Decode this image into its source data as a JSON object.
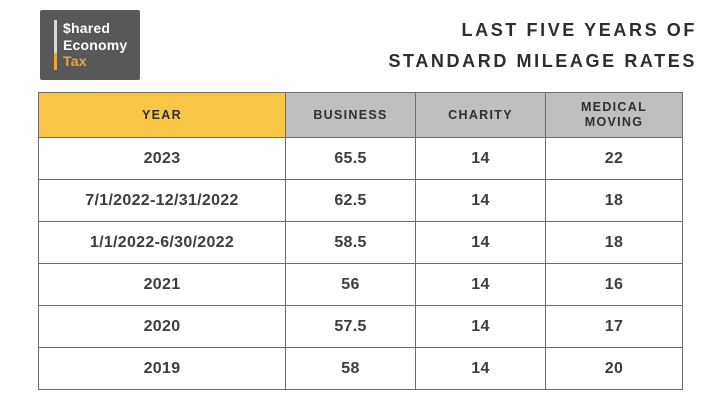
{
  "logo": {
    "line1": "$hared",
    "line2": "Economy",
    "line3": "Tax"
  },
  "title": {
    "line1": "LAST FIVE YEARS OF",
    "line2": "STANDARD MILEAGE RATES"
  },
  "table": {
    "headers": {
      "year": "YEAR",
      "business": "BUSINESS",
      "charity": "CHARITY",
      "medical": "MEDICAL\nMOVING"
    }
  },
  "chart_data": {
    "type": "table",
    "title": "LAST FIVE YEARS OF STANDARD MILEAGE RATES",
    "columns": [
      "YEAR",
      "BUSINESS",
      "CHARITY",
      "MEDICAL MOVING"
    ],
    "rows": [
      [
        "2023",
        "65.5",
        "14",
        "22"
      ],
      [
        "7/1/2022-12/31/2022",
        "62.5",
        "14",
        "18"
      ],
      [
        "1/1/2022-6/30/2022",
        "58.5",
        "14",
        "18"
      ],
      [
        "2021",
        "56",
        "14",
        "16"
      ],
      [
        "2020",
        "57.5",
        "14",
        "17"
      ],
      [
        "2019",
        "58",
        "14",
        "20"
      ]
    ]
  },
  "colors": {
    "accent_yellow": "#fac645",
    "header_gray": "#bfbfbf",
    "logo_background": "#58585a",
    "logo_tax_gold": "#eaa63c",
    "text_dark": "#2e2e2e",
    "border_gray": "#6e6e6e"
  }
}
